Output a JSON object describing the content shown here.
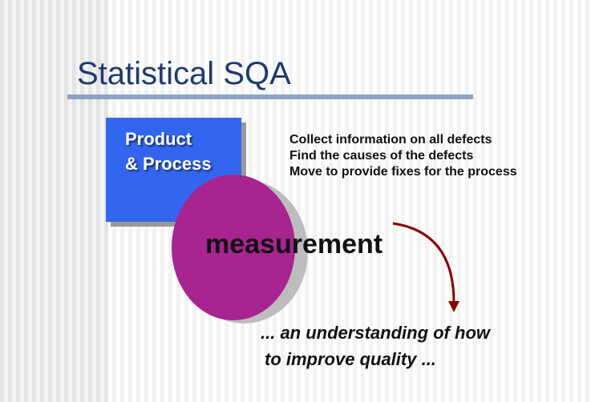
{
  "slide": {
    "title": "Statistical SQA",
    "box": {
      "line1": "Product",
      "line2": "& Process"
    },
    "bullets": [
      "Collect information on all defects",
      "Find the causes of the defects",
      "Move to provide fixes for the process"
    ],
    "center_label": "measurement",
    "outcome": {
      "line1": "... an understanding of how",
      "line2": "to improve quality ..."
    },
    "colors": {
      "title": "#1e3a6e",
      "box": "#3366ee",
      "ellipse": "#a82490",
      "arrow": "#8b0000"
    }
  }
}
